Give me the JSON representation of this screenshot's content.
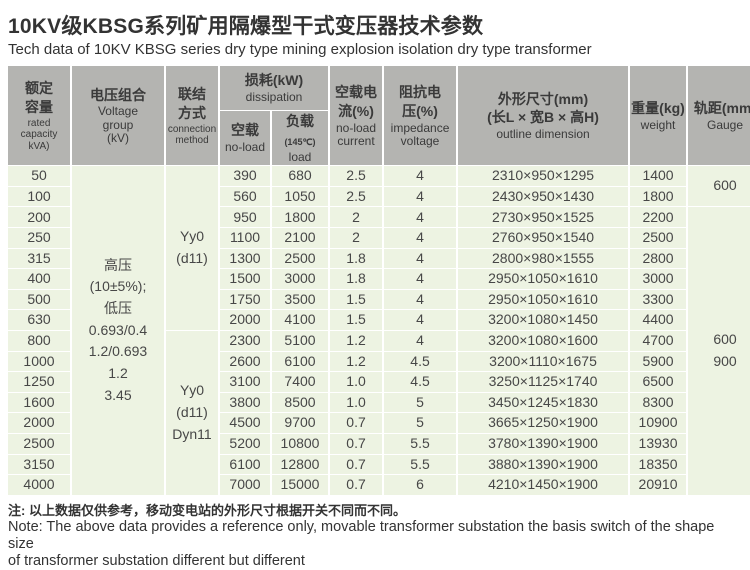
{
  "title": "10KV级KBSG系列矿用隔爆型干式变压器技术参数",
  "subtitle": "Tech data of 10KV KBSG series dry type mining explosion isolation dry type transformer",
  "colors": {
    "header_bg": "#b4b4b1",
    "body_bg": "#edf3e2",
    "text": "#3a3a3a"
  },
  "table": {
    "headers": {
      "capacity": {
        "zh": "额定\n容量",
        "en": "rated\ncapacity\nkVA)"
      },
      "voltage": {
        "zh": "电压组合",
        "en": "Voltage\ngroup\n(kV)"
      },
      "connection": {
        "zh": "联结\n方式",
        "en": "connection\nmethod"
      },
      "dissipation": {
        "zh": "损耗(kW)",
        "en": "dissipation"
      },
      "dissipation_noload": {
        "zh": "空载",
        "en": "no-load"
      },
      "dissipation_load": {
        "zh": "负载",
        "note": "(145℃)",
        "en": "load"
      },
      "noload_current": {
        "zh": "空载电\n流(%)",
        "en": "no-load\ncurrent"
      },
      "impedance": {
        "zh": "阻抗电\n压(%)",
        "en": "impedance\nvoltage"
      },
      "dimensions": {
        "zh": "外形尺寸(mm)\n(长L × 宽B × 高H)",
        "en": "outline dimension"
      },
      "weight": {
        "zh": "重量(kg)",
        "en": "weight"
      },
      "gauge": {
        "zh": "轨距(mm)",
        "en": "Gauge"
      }
    },
    "columns": [
      "rated capacity kVA",
      "no-load loss kW",
      "load loss kW",
      "no-load current %",
      "impedance voltage %",
      "outline dimension mm",
      "weight kg"
    ],
    "rows": [
      [
        "50",
        "390",
        "680",
        "2.5",
        "4",
        "2310×950×1295",
        "1400"
      ],
      [
        "100",
        "560",
        "1050",
        "2.5",
        "4",
        "2430×950×1430",
        "1800"
      ],
      [
        "200",
        "950",
        "1800",
        "2",
        "4",
        "2730×950×1525",
        "2200"
      ],
      [
        "250",
        "1100",
        "2100",
        "2",
        "4",
        "2760×950×1540",
        "2500"
      ],
      [
        "315",
        "1300",
        "2500",
        "1.8",
        "4",
        "2800×980×1555",
        "2800"
      ],
      [
        "400",
        "1500",
        "3000",
        "1.8",
        "4",
        "2950×1050×1610",
        "3000"
      ],
      [
        "500",
        "1750",
        "3500",
        "1.5",
        "4",
        "2950×1050×1610",
        "3300"
      ],
      [
        "630",
        "2000",
        "4100",
        "1.5",
        "4",
        "3200×1080×1450",
        "4400"
      ],
      [
        "800",
        "2300",
        "5100",
        "1.2",
        "4",
        "3200×1080×1600",
        "4700"
      ],
      [
        "1000",
        "2600",
        "6100",
        "1.2",
        "4.5",
        "3200×1110×1675",
        "5900"
      ],
      [
        "1250",
        "3100",
        "7400",
        "1.0",
        "4.5",
        "3250×1125×1740",
        "6500"
      ],
      [
        "1600",
        "3800",
        "8500",
        "1.0",
        "5",
        "3450×1245×1830",
        "8300"
      ],
      [
        "2000",
        "4500",
        "9700",
        "0.7",
        "5",
        "3665×1250×1900",
        "10900"
      ],
      [
        "2500",
        "5200",
        "10800",
        "0.7",
        "5.5",
        "3780×1390×1900",
        "13930"
      ],
      [
        "3150",
        "6100",
        "12800",
        "0.7",
        "5.5",
        "3880×1390×1900",
        "18350"
      ],
      [
        "4000",
        "7000",
        "15000",
        "0.7",
        "6",
        "4210×1450×1900",
        "20910"
      ]
    ],
    "voltage_group": {
      "rowspan": 16,
      "lines": [
        "高压",
        "(10±5%);",
        "低压",
        "0.693/0.4",
        "1.2/0.693",
        "1.2",
        "3.45"
      ]
    },
    "connection_groups": [
      {
        "rowspan": 8,
        "lines": [
          "Yy0",
          "(d11)"
        ]
      },
      {
        "rowspan": 8,
        "lines": [
          "Yy0",
          "(d11)",
          "Dyn11"
        ]
      }
    ],
    "gauge_cells": [
      {
        "rowspan": 2,
        "lines": [
          "600"
        ]
      },
      {
        "rowspan": 14,
        "lines": [
          "600",
          "900"
        ]
      }
    ]
  },
  "notes": {
    "zh": "注: 以上数据仅供参考，移动变电站的外形尺寸根据开关不同而不同。",
    "en1": "Note: The above data provides a reference only, movable transformer substation the basis switch of the shape size",
    "en2": "of transformer substation different but different"
  }
}
